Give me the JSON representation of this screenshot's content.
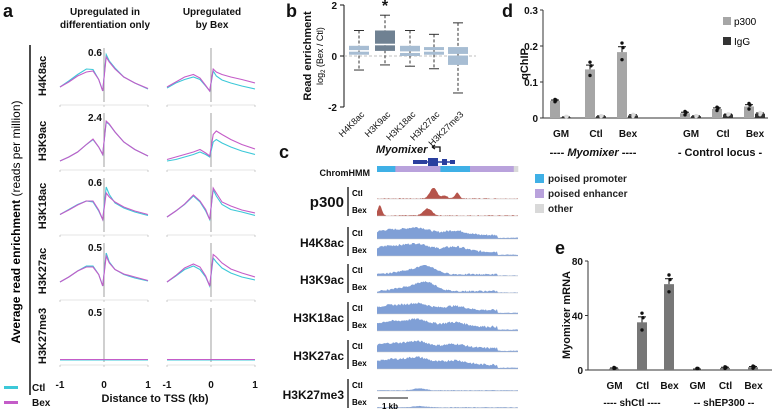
{
  "chart_data": [
    {
      "panel": "a",
      "type": "line",
      "column_titles": [
        [
          "Upregulated in",
          "differentiation only"
        ],
        [
          "Upregulated",
          "by Bex"
        ]
      ],
      "ylabel_bold": "Average read enrichment",
      "ylabel_light": " (reads per million)",
      "xlabel": "Distance to TSS (kb)",
      "x_ticks": [
        "-1",
        "0",
        "1"
      ],
      "x": [
        -1,
        -0.8,
        -0.6,
        -0.4,
        -0.25,
        -0.12,
        -0.03,
        0.05,
        0.12,
        0.25,
        0.45,
        0.7,
        1
      ],
      "legend": [
        {
          "name": "Ctl",
          "color": "#3cc8d8"
        },
        {
          "name": "Bex",
          "color": "#c45cc8"
        }
      ],
      "rows": [
        {
          "mark": "H4K8ac",
          "ymax": "0.6",
          "left": {
            "Ctl": [
              0.3,
              0.42,
              0.55,
              0.66,
              0.65,
              0.45,
              0.22,
              0.95,
              0.82,
              0.68,
              0.5,
              0.38,
              0.26
            ],
            "Bex": [
              0.3,
              0.4,
              0.52,
              0.6,
              0.62,
              0.45,
              0.22,
              0.9,
              0.8,
              0.66,
              0.5,
              0.38,
              0.27
            ]
          },
          "right": {
            "Ctl": [
              0.28,
              0.38,
              0.45,
              0.5,
              0.45,
              0.32,
              0.22,
              0.62,
              0.52,
              0.44,
              0.38,
              0.32,
              0.26
            ],
            "Bex": [
              0.3,
              0.4,
              0.5,
              0.55,
              0.48,
              0.33,
              0.22,
              0.66,
              0.6,
              0.55,
              0.5,
              0.45,
              0.38
            ]
          }
        },
        {
          "mark": "H3K9ac",
          "ymax": "2.4",
          "left": {
            "Ctl": [
              0.12,
              0.2,
              0.3,
              0.45,
              0.55,
              0.4,
              0.25,
              0.9,
              0.85,
              0.7,
              0.5,
              0.35,
              0.22
            ],
            "Bex": [
              0.12,
              0.2,
              0.3,
              0.45,
              0.56,
              0.4,
              0.25,
              0.92,
              0.86,
              0.7,
              0.5,
              0.35,
              0.22
            ]
          },
          "right": {
            "Ctl": [
              0.12,
              0.15,
              0.2,
              0.25,
              0.3,
              0.25,
              0.2,
              0.5,
              0.55,
              0.48,
              0.4,
              0.32,
              0.25
            ],
            "Bex": [
              0.15,
              0.2,
              0.25,
              0.3,
              0.35,
              0.28,
              0.22,
              0.65,
              0.72,
              0.65,
              0.55,
              0.45,
              0.36
            ]
          }
        },
        {
          "mark": "H3K18ac",
          "ymax": "0.6",
          "left": {
            "Ctl": [
              0.35,
              0.45,
              0.55,
              0.62,
              0.6,
              0.42,
              0.25,
              0.9,
              0.75,
              0.58,
              0.48,
              0.4,
              0.33
            ],
            "Bex": [
              0.35,
              0.44,
              0.54,
              0.62,
              0.62,
              0.44,
              0.25,
              0.78,
              0.7,
              0.6,
              0.5,
              0.42,
              0.35
            ]
          },
          "right": {
            "Ctl": [
              0.3,
              0.42,
              0.55,
              0.72,
              0.6,
              0.42,
              0.25,
              0.85,
              0.72,
              0.55,
              0.45,
              0.4,
              0.33
            ],
            "Bex": [
              0.3,
              0.42,
              0.56,
              0.74,
              0.62,
              0.45,
              0.25,
              0.88,
              0.78,
              0.6,
              0.52,
              0.44,
              0.38
            ]
          }
        },
        {
          "mark": "H3K27ac",
          "ymax": "0.5",
          "left": {
            "Ctl": [
              0.3,
              0.4,
              0.52,
              0.62,
              0.62,
              0.45,
              0.22,
              0.88,
              0.7,
              0.55,
              0.45,
              0.38,
              0.32
            ],
            "Bex": [
              0.3,
              0.4,
              0.52,
              0.6,
              0.6,
              0.45,
              0.22,
              0.82,
              0.68,
              0.55,
              0.46,
              0.4,
              0.33
            ]
          },
          "right": {
            "Ctl": [
              0.3,
              0.42,
              0.55,
              0.62,
              0.55,
              0.4,
              0.22,
              0.78,
              0.7,
              0.58,
              0.48,
              0.4,
              0.34
            ],
            "Bex": [
              0.3,
              0.43,
              0.58,
              0.66,
              0.6,
              0.42,
              0.22,
              0.85,
              0.8,
              0.68,
              0.56,
              0.48,
              0.4
            ]
          }
        },
        {
          "mark": "H3K27me3",
          "ymax": "0.5",
          "left": {
            "Ctl": [
              0.04,
              0.04,
              0.04,
              0.04,
              0.04,
              0.04,
              0.04,
              0.04,
              0.04,
              0.04,
              0.04,
              0.04,
              0.04
            ],
            "Bex": [
              0.05,
              0.05,
              0.05,
              0.05,
              0.05,
              0.05,
              0.05,
              0.05,
              0.05,
              0.05,
              0.05,
              0.05,
              0.05
            ]
          },
          "right": {
            "Ctl": [
              0.04,
              0.04,
              0.04,
              0.04,
              0.04,
              0.04,
              0.04,
              0.04,
              0.04,
              0.04,
              0.04,
              0.04,
              0.04
            ],
            "Bex": [
              0.05,
              0.05,
              0.05,
              0.05,
              0.05,
              0.05,
              0.05,
              0.05,
              0.05,
              0.05,
              0.05,
              0.05,
              0.05
            ]
          }
        }
      ]
    },
    {
      "panel": "b",
      "type": "box",
      "ylabel": "Read enrichment",
      "ylabel2_pre": "log",
      "ylabel2_sub": "2",
      "ylabel2_post": " (Bex / Ctl)",
      "ylim": [
        -2,
        2
      ],
      "y_ticks": [
        "2",
        "0",
        "-2"
      ],
      "categories": [
        "H4K8ac",
        "H3K9ac",
        "H3K18ac",
        "H3K27ac",
        "H3K27me3"
      ],
      "boxes": [
        {
          "min": -0.55,
          "q1": 0.05,
          "median": 0.2,
          "q3": 0.4,
          "max": 1.0
        },
        {
          "min": -0.35,
          "q1": 0.2,
          "median": 0.45,
          "q3": 1.0,
          "max": 1.6
        },
        {
          "min": -0.4,
          "q1": 0.0,
          "median": 0.15,
          "q3": 0.4,
          "max": 1.0
        },
        {
          "min": -0.5,
          "q1": 0.05,
          "median": 0.2,
          "q3": 0.35,
          "max": 0.85
        },
        {
          "min": -1.45,
          "q1": -0.35,
          "median": 0.05,
          "q3": 0.35,
          "max": 1.3
        }
      ],
      "significance": {
        "category": "H3K9ac",
        "mark": "*"
      }
    },
    {
      "panel": "c",
      "type": "area",
      "gene": "Myomixer",
      "chromhmm_label": "ChromHMM",
      "chromhmm_segments": [
        {
          "state": "poised promoter",
          "fraction": 0.13
        },
        {
          "state": "poised enhancer",
          "fraction": 0.32
        },
        {
          "state": "poised promoter",
          "fraction": 0.21
        },
        {
          "state": "poised enhancer",
          "fraction": 0.31
        },
        {
          "state": "other",
          "fraction": 0.03
        }
      ],
      "legend": [
        {
          "name": "poised promoter",
          "color": "#3fb0e6"
        },
        {
          "name": "poised enhancer",
          "color": "#b9a2dc"
        },
        {
          "name": "other",
          "color": "#d9d9d9"
        }
      ],
      "tracks": [
        {
          "mark": "p300",
          "conditions": [
            "Ctl",
            "Bex"
          ],
          "color": "#b5544b"
        },
        {
          "mark": "H4K8ac",
          "conditions": [
            "Ctl",
            "Bex"
          ],
          "color": "#7f9fd6"
        },
        {
          "mark": "H3K9ac",
          "conditions": [
            "Ctl",
            "Bex"
          ],
          "color": "#7f9fd6"
        },
        {
          "mark": "H3K18ac",
          "conditions": [
            "Ctl",
            "Bex"
          ],
          "color": "#7f9fd6"
        },
        {
          "mark": "H3K27ac",
          "conditions": [
            "Ctl",
            "Bex"
          ],
          "color": "#7f9fd6"
        },
        {
          "mark": "H3K27me3",
          "conditions": [
            "Ctl",
            "Bex"
          ],
          "color": "#7f9fd6"
        }
      ],
      "scale_bar": "1 kb"
    },
    {
      "panel": "d",
      "type": "bar",
      "ylabel": "qChIP",
      "ylim": [
        0,
        0.3
      ],
      "y_ticks": [
        "0.3",
        "0.2",
        "0.1",
        "0"
      ],
      "categories": [
        "GM",
        "Ctl",
        "Bex",
        "GM",
        "Ctl",
        "Bex"
      ],
      "groups": [
        {
          "label_pre": "---- ",
          "label_it": "Myomixer",
          "label_post": " ----"
        },
        {
          "label_pre": "- Control locus -",
          "label_it": "",
          "label_post": ""
        }
      ],
      "series": [
        {
          "name": "p300",
          "color": "#a6a6a6",
          "values": [
            0.048,
            0.135,
            0.183,
            0.013,
            0.025,
            0.032
          ],
          "err": [
            0.002,
            0.012,
            0.015,
            0.003,
            0.003,
            0.005
          ]
        },
        {
          "name": "IgG",
          "color": "#333333",
          "values": [
            0.002,
            0.005,
            0.007,
            0.005,
            0.01,
            0.012
          ],
          "err": [
            0.001,
            0.001,
            0.002,
            0.001,
            0.001,
            0.002
          ]
        }
      ]
    },
    {
      "panel": "e",
      "type": "bar",
      "ylabel": "Myomixer mRNA",
      "ylim": [
        0,
        80
      ],
      "y_ticks": [
        "80",
        "40",
        "0"
      ],
      "categories": [
        "GM",
        "Ctl",
        "Bex",
        "GM",
        "Ctl",
        "Bex"
      ],
      "groups": [
        {
          "label": "---- shCtl ----"
        },
        {
          "label": "-- shEP300 --"
        }
      ],
      "series": [
        {
          "name": "Myomixer mRNA",
          "color": "#777777",
          "values": [
            1,
            35,
            63,
            0.5,
            1.5,
            2
          ],
          "err": [
            0.5,
            4,
            4,
            0.2,
            0.5,
            0.5
          ]
        }
      ]
    }
  ],
  "panel_letters": [
    "a",
    "b",
    "c",
    "d",
    "e"
  ]
}
